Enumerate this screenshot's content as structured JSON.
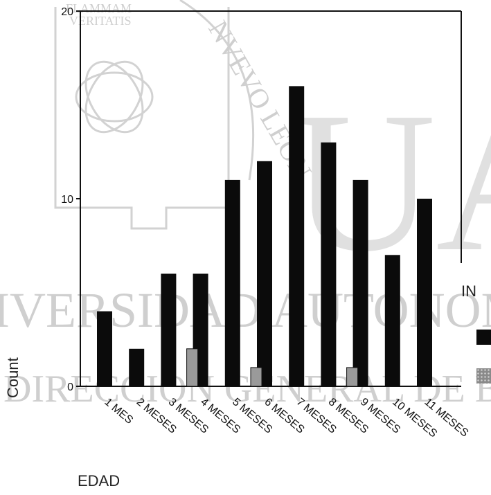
{
  "colors": {
    "series_a": "#0b0b0b",
    "series_b": "#9a9a9a",
    "axis": "#111111",
    "watermark": "#cfcfcf"
  },
  "chart_data": {
    "type": "bar",
    "xlabel": "EDAD",
    "ylabel": "Count",
    "legend_title": "IN",
    "ylim": [
      0,
      20
    ],
    "yticks": [
      0,
      10,
      20
    ],
    "categories": [
      "1 MES",
      "2 MESES",
      "3 MESES",
      "4 MESES",
      "5 MESES",
      "6 MESES",
      "7 MESES",
      "8 MESES",
      "9 MESES",
      "10 MESES",
      "11 MESES"
    ],
    "series": [
      {
        "values": [
          4,
          2,
          6,
          6,
          11,
          12,
          16,
          13,
          11,
          7,
          10
        ]
      },
      {
        "values": [
          0,
          0,
          0,
          2,
          0,
          1,
          0,
          0,
          1,
          0,
          0
        ]
      }
    ],
    "grid": false,
    "legend_placement": "right"
  },
  "watermark": {
    "motto_top": "FLAMMAM",
    "motto_bottom": "VERITATIS",
    "arc_text": "NVEVO LEON",
    "band_1": "IVERSIDAD AUTONOMA",
    "band_2": "DIRECCION GENERAL DE B",
    "big_letters": "UA"
  }
}
